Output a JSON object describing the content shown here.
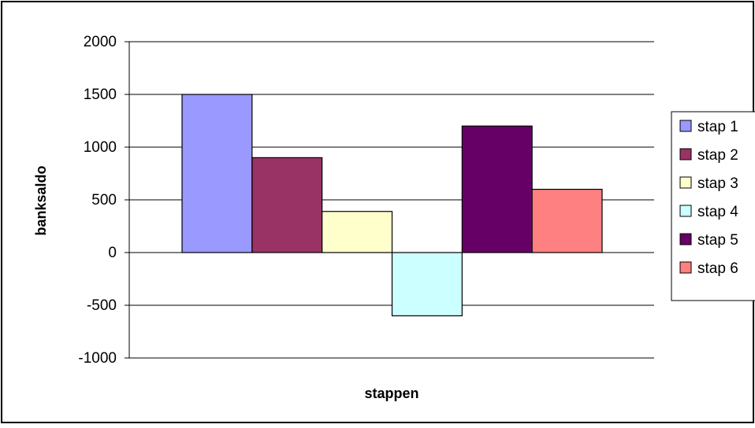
{
  "chart_data": {
    "type": "bar",
    "xlabel": "stappen",
    "ylabel": "banksaldo",
    "ylim": [
      -1000,
      2000
    ],
    "yticks": [
      2000,
      1500,
      1000,
      500,
      0,
      -500,
      -1000
    ],
    "grid": true,
    "legend": "right",
    "series": [
      {
        "name": "stap 1",
        "value": 1500,
        "color": "#9999ff"
      },
      {
        "name": "stap 2",
        "value": 900,
        "color": "#993366"
      },
      {
        "name": "stap 3",
        "value": 390,
        "color": "#ffffcc"
      },
      {
        "name": "stap 4",
        "value": -600,
        "color": "#ccffff"
      },
      {
        "name": "stap 5",
        "value": 1200,
        "color": "#660066"
      },
      {
        "name": "stap 6",
        "value": 600,
        "color": "#ff8080"
      }
    ]
  }
}
